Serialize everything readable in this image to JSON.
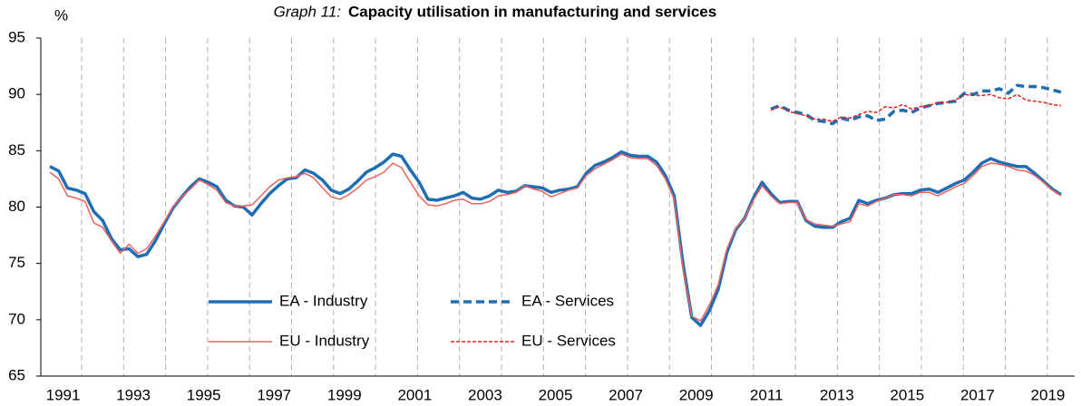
{
  "chart_data": {
    "type": "line",
    "graph_label": "Graph 11:",
    "title": "Capacity utilisation in manufacturing and services",
    "y_label": "%",
    "categories": [
      "1991",
      null,
      null,
      null,
      null,
      null,
      null,
      null,
      "1993",
      null,
      null,
      null,
      null,
      null,
      null,
      null,
      "1995",
      null,
      null,
      null,
      null,
      null,
      null,
      null,
      "1997",
      null,
      null,
      null,
      null,
      null,
      null,
      null,
      "1999",
      null,
      null,
      null,
      null,
      null,
      null,
      null,
      "2001",
      null,
      null,
      null,
      null,
      null,
      null,
      null,
      "2003",
      null,
      null,
      null,
      null,
      null,
      null,
      null,
      "2005",
      null,
      null,
      null,
      null,
      null,
      null,
      null,
      "2007",
      null,
      null,
      null,
      null,
      null,
      null,
      null,
      "2009",
      null,
      null,
      null,
      null,
      null,
      null,
      null,
      "2011",
      null,
      null,
      null,
      null,
      null,
      null,
      null,
      "2013",
      null,
      null,
      null,
      null,
      null,
      null,
      null,
      "2015",
      null,
      null,
      null,
      null,
      null,
      null,
      null,
      "2017",
      null,
      null,
      null,
      null,
      null,
      null,
      null,
      "2019",
      null,
      null,
      null
    ],
    "ylim": [
      65,
      95
    ],
    "yticks": [
      65,
      70,
      75,
      80,
      85,
      90,
      95
    ],
    "series": [
      {
        "name": "EA - Industry",
        "color": "#1f6eb4",
        "style": "solid",
        "width": 3.5,
        "values": [
          83.6,
          83.2,
          81.7,
          81.5,
          81.2,
          79.6,
          78.8,
          77.2,
          76.2,
          76.3,
          75.6,
          75.8,
          77.0,
          78.5,
          79.9,
          80.9,
          81.8,
          82.5,
          82.2,
          81.8,
          80.6,
          80.1,
          80.0,
          79.3,
          80.3,
          81.2,
          81.9,
          82.5,
          82.6,
          83.3,
          83.0,
          82.4,
          81.5,
          81.2,
          81.6,
          82.3,
          83.1,
          83.5,
          84.0,
          84.7,
          84.5,
          83.3,
          82.2,
          80.7,
          80.6,
          80.8,
          81.0,
          81.3,
          80.8,
          80.7,
          81.0,
          81.5,
          81.3,
          81.4,
          81.9,
          81.8,
          81.7,
          81.3,
          81.5,
          81.6,
          81.8,
          83.0,
          83.7,
          84.0,
          84.4,
          84.9,
          84.6,
          84.5,
          84.5,
          84.0,
          82.8,
          81.0,
          75.0,
          70.2,
          69.5,
          70.8,
          72.7,
          76.0,
          78.0,
          79.0,
          80.8,
          82.2,
          81.2,
          80.4,
          80.5,
          80.5,
          78.8,
          78.3,
          78.2,
          78.2,
          78.7,
          79.0,
          80.6,
          80.3,
          80.6,
          80.8,
          81.1,
          81.2,
          81.2,
          81.5,
          81.6,
          81.3,
          81.7,
          82.1,
          82.4,
          83.1,
          83.9,
          84.3,
          84.0,
          83.8,
          83.6,
          83.6,
          83.0,
          82.3,
          81.6,
          81.1
        ]
      },
      {
        "name": "EA - Services",
        "color": "#1f6eb4",
        "style": "dashed",
        "width": 3.5,
        "values": [
          null,
          null,
          null,
          null,
          null,
          null,
          null,
          null,
          null,
          null,
          null,
          null,
          null,
          null,
          null,
          null,
          null,
          null,
          null,
          null,
          null,
          null,
          null,
          null,
          null,
          null,
          null,
          null,
          null,
          null,
          null,
          null,
          null,
          null,
          null,
          null,
          null,
          null,
          null,
          null,
          null,
          null,
          null,
          null,
          null,
          null,
          null,
          null,
          null,
          null,
          null,
          null,
          null,
          null,
          null,
          null,
          null,
          null,
          null,
          null,
          null,
          null,
          null,
          null,
          null,
          null,
          null,
          null,
          null,
          null,
          null,
          null,
          null,
          null,
          null,
          null,
          null,
          null,
          null,
          null,
          null,
          null,
          88.7,
          89.0,
          88.6,
          88.4,
          88.2,
          87.7,
          87.6,
          87.4,
          87.9,
          87.7,
          88.0,
          88.1,
          87.7,
          87.8,
          88.5,
          88.6,
          88.4,
          88.8,
          89.0,
          89.2,
          89.3,
          89.4,
          90.1,
          90.0,
          90.3,
          90.3,
          90.5,
          90.1,
          90.8,
          90.7,
          90.7,
          90.6,
          90.4,
          90.2
        ]
      },
      {
        "name": "EU - Industry",
        "color": "#f0605a",
        "style": "solid",
        "width": 1.5,
        "values": [
          83.1,
          82.5,
          81.0,
          80.8,
          80.5,
          78.6,
          78.2,
          77.0,
          75.9,
          76.7,
          75.9,
          76.3,
          77.4,
          78.7,
          80.0,
          80.9,
          81.6,
          82.4,
          82.0,
          81.5,
          80.4,
          80.1,
          80.1,
          80.2,
          81.0,
          81.8,
          82.4,
          82.6,
          82.7,
          83.0,
          82.6,
          81.7,
          80.9,
          80.7,
          81.1,
          81.7,
          82.4,
          82.7,
          83.1,
          83.9,
          83.5,
          82.2,
          81.0,
          80.2,
          80.1,
          80.3,
          80.6,
          80.7,
          80.3,
          80.3,
          80.5,
          81.0,
          81.1,
          81.3,
          81.9,
          81.6,
          81.4,
          80.9,
          81.2,
          81.5,
          81.7,
          82.8,
          83.4,
          83.8,
          84.2,
          84.7,
          84.4,
          84.3,
          84.3,
          83.7,
          82.5,
          80.7,
          74.6,
          70.3,
          69.9,
          71.3,
          73.1,
          76.3,
          78.1,
          79.0,
          80.6,
          81.9,
          81.0,
          80.3,
          80.4,
          80.4,
          78.9,
          78.5,
          78.4,
          78.3,
          78.5,
          78.7,
          80.3,
          80.1,
          80.5,
          80.8,
          81.1,
          81.1,
          81.0,
          81.3,
          81.3,
          81.0,
          81.4,
          81.8,
          82.1,
          82.8,
          83.6,
          83.9,
          83.8,
          83.6,
          83.3,
          83.2,
          82.8,
          82.2,
          81.5,
          81.0
        ]
      },
      {
        "name": "EU - Services",
        "color": "#e3201b",
        "style": "dashed",
        "width": 1.5,
        "values": [
          null,
          null,
          null,
          null,
          null,
          null,
          null,
          null,
          null,
          null,
          null,
          null,
          null,
          null,
          null,
          null,
          null,
          null,
          null,
          null,
          null,
          null,
          null,
          null,
          null,
          null,
          null,
          null,
          null,
          null,
          null,
          null,
          null,
          null,
          null,
          null,
          null,
          null,
          null,
          null,
          null,
          null,
          null,
          null,
          null,
          null,
          null,
          null,
          null,
          null,
          null,
          null,
          null,
          null,
          null,
          null,
          null,
          null,
          null,
          null,
          null,
          null,
          null,
          null,
          null,
          null,
          null,
          null,
          null,
          null,
          null,
          null,
          null,
          null,
          null,
          null,
          null,
          null,
          null,
          null,
          null,
          null,
          88.6,
          88.9,
          88.5,
          88.3,
          88.1,
          87.8,
          87.8,
          87.6,
          88.0,
          87.9,
          88.2,
          88.5,
          88.4,
          88.9,
          88.8,
          89.1,
          88.7,
          88.9,
          89.0,
          89.3,
          89.3,
          89.5,
          90.0,
          89.9,
          89.9,
          90.0,
          89.7,
          89.6,
          90.0,
          89.5,
          89.4,
          89.3,
          89.1,
          89.0
        ]
      }
    ]
  }
}
